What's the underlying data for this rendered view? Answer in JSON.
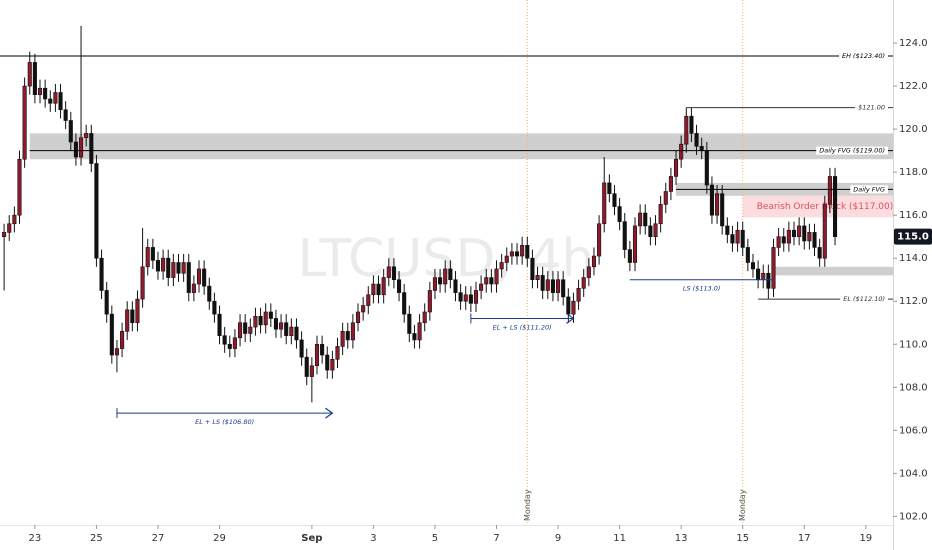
{
  "chart_data": {
    "type": "candlestick",
    "title": "LTCUSD, 4h",
    "xlim": [
      -0.8,
      173.3
    ],
    "ylim": [
      101.6,
      126.0
    ],
    "grid": false,
    "xticks": [
      {
        "value": 6,
        "label": "23"
      },
      {
        "value": 18,
        "label": "25"
      },
      {
        "value": 30,
        "label": "27"
      },
      {
        "value": 42,
        "label": "29"
      },
      {
        "value": 60,
        "label": "Sep"
      },
      {
        "value": 72,
        "label": "3"
      },
      {
        "value": 84,
        "label": "5"
      },
      {
        "value": 96,
        "label": "7"
      },
      {
        "value": 108,
        "label": "9"
      },
      {
        "value": 120,
        "label": "11"
      },
      {
        "value": 132,
        "label": "13"
      },
      {
        "value": 144,
        "label": "15"
      },
      {
        "value": 156,
        "label": "17"
      },
      {
        "value": 168,
        "label": "19"
      }
    ],
    "yticks": [
      {
        "value": 102,
        "label": "102.0"
      },
      {
        "value": 104,
        "label": "104.0"
      },
      {
        "value": 106,
        "label": "106.0"
      },
      {
        "value": 108,
        "label": "108.0"
      },
      {
        "value": 110,
        "label": "110.0"
      },
      {
        "value": 112,
        "label": "112.0"
      },
      {
        "value": 114,
        "label": "114.0"
      },
      {
        "value": 116,
        "label": "116.0"
      },
      {
        "value": 118,
        "label": "118.0"
      },
      {
        "value": 120,
        "label": "120.0"
      },
      {
        "value": 122,
        "label": "122.0"
      },
      {
        "value": 124,
        "label": "124.0"
      }
    ],
    "candles": {
      "up_color": "#8e1b2c",
      "down_color": "#111111",
      "open": [
        115.0,
        115.2,
        115.6,
        116.0,
        118.6,
        122.0,
        123.1,
        121.6,
        121.9,
        121.4,
        121.2,
        121.7,
        120.9,
        120.4,
        119.4,
        118.7,
        119.6,
        119.8,
        118.4,
        114.0,
        112.5,
        111.4,
        109.5,
        109.8,
        110.6,
        111.6,
        111.0,
        112.1,
        113.6,
        114.5,
        113.9,
        113.4,
        114.0,
        113.1,
        113.8,
        113.3,
        113.8,
        112.4,
        112.8,
        113.5,
        112.7,
        112.0,
        111.4,
        110.4,
        110.0,
        109.8,
        110.3,
        111.0,
        110.5,
        110.8,
        111.3,
        110.9,
        111.5,
        111.2,
        110.7,
        111.0,
        110.4,
        110.8,
        110.2,
        109.4,
        108.5,
        109.0,
        110.0,
        109.5,
        108.8,
        109.3,
        109.9,
        110.6,
        110.2,
        111.0,
        111.5,
        111.8,
        112.3,
        112.8,
        112.3,
        113.1,
        113.6,
        113.0,
        112.4,
        111.4,
        110.5,
        110.2,
        111.0,
        111.5,
        112.5,
        113.1,
        112.8,
        113.5,
        113.0,
        112.4,
        112.0,
        112.3,
        111.9,
        112.5,
        112.8,
        113.1,
        112.8,
        113.5,
        113.8,
        114.1,
        114.3,
        114.1,
        114.6,
        114.0,
        113.0,
        113.2,
        112.5,
        113.0,
        112.4,
        113.0,
        112.2,
        111.4,
        112.0,
        112.6,
        113.1,
        113.6,
        114.1,
        115.6,
        117.5,
        117.0,
        116.4,
        115.7,
        114.4,
        113.8,
        115.5,
        116.1,
        115.5,
        115.0,
        115.6,
        116.5,
        117.1,
        117.8,
        118.6,
        119.3,
        120.6,
        119.8,
        119.2,
        119.0,
        117.4,
        116.0,
        117.0,
        115.5,
        115.1,
        114.7,
        115.3,
        114.5,
        113.8,
        113.5,
        113.0,
        113.3,
        112.6,
        114.5,
        115.0,
        114.7,
        115.3,
        115.0,
        115.5,
        114.8,
        115.2,
        114.5,
        114.0,
        116.5,
        117.8
      ],
      "high": [
        115.6,
        116.0,
        116.4,
        119.0,
        122.4,
        123.6,
        123.5,
        122.3,
        122.3,
        121.8,
        122.1,
        122.1,
        121.3,
        120.8,
        119.8,
        124.8,
        120.2,
        120.2,
        118.8,
        114.4,
        112.9,
        111.8,
        110.2,
        111.0,
        112.0,
        112.0,
        112.5,
        115.4,
        114.9,
        114.9,
        114.3,
        114.4,
        114.4,
        114.2,
        114.2,
        114.2,
        114.2,
        113.2,
        113.9,
        113.9,
        113.1,
        112.4,
        111.8,
        110.8,
        110.4,
        110.7,
        111.4,
        111.4,
        111.2,
        111.7,
        111.7,
        111.9,
        111.9,
        111.6,
        111.4,
        111.4,
        111.2,
        111.2,
        110.6,
        109.8,
        109.4,
        110.4,
        110.4,
        109.9,
        109.7,
        110.3,
        111.0,
        111.0,
        111.4,
        111.9,
        112.2,
        112.7,
        113.2,
        113.2,
        113.5,
        114.0,
        114.0,
        113.4,
        112.8,
        111.8,
        110.9,
        111.4,
        111.9,
        112.9,
        113.5,
        113.5,
        113.9,
        113.9,
        113.4,
        112.8,
        112.7,
        112.7,
        112.9,
        113.2,
        113.5,
        113.5,
        113.9,
        114.2,
        114.5,
        114.7,
        114.7,
        115.0,
        115.0,
        114.4,
        113.6,
        113.6,
        113.4,
        113.4,
        113.4,
        113.4,
        112.6,
        112.4,
        113.0,
        113.5,
        114.0,
        114.5,
        116.0,
        118.7,
        117.9,
        117.4,
        116.8,
        116.1,
        114.8,
        115.9,
        116.5,
        116.5,
        115.9,
        116.0,
        116.9,
        117.5,
        118.2,
        119.0,
        119.7,
        121.0,
        121.0,
        120.2,
        119.6,
        119.4,
        117.8,
        117.4,
        117.4,
        115.9,
        115.5,
        115.7,
        115.7,
        114.9,
        114.2,
        113.9,
        113.7,
        113.7,
        114.9,
        115.4,
        115.4,
        115.7,
        115.7,
        115.9,
        115.9,
        115.6,
        115.6,
        114.9,
        116.9,
        118.2,
        118.2
      ],
      "low": [
        112.5,
        114.8,
        115.2,
        115.6,
        118.2,
        121.6,
        121.2,
        121.2,
        121.0,
        120.8,
        120.8,
        120.5,
        120.0,
        119.0,
        118.3,
        118.3,
        119.2,
        118.0,
        113.6,
        112.1,
        111.0,
        109.1,
        108.7,
        109.4,
        110.2,
        110.6,
        110.6,
        111.7,
        113.2,
        113.5,
        113.0,
        113.0,
        112.7,
        112.7,
        112.9,
        112.9,
        112.0,
        112.0,
        112.4,
        112.3,
        111.6,
        111.0,
        110.0,
        109.6,
        109.4,
        109.4,
        109.9,
        110.1,
        110.1,
        110.4,
        110.5,
        110.5,
        110.8,
        110.3,
        110.3,
        110.0,
        110.0,
        109.8,
        109.0,
        108.1,
        107.3,
        108.6,
        109.1,
        108.4,
        108.4,
        108.9,
        109.5,
        109.8,
        109.8,
        110.6,
        111.1,
        111.4,
        111.9,
        111.9,
        111.9,
        112.7,
        112.6,
        112.0,
        111.0,
        110.1,
        109.8,
        109.8,
        110.6,
        111.1,
        112.1,
        112.4,
        112.4,
        112.6,
        112.0,
        111.6,
        111.6,
        111.5,
        111.5,
        112.1,
        112.4,
        112.4,
        112.4,
        113.1,
        113.4,
        113.7,
        113.7,
        113.7,
        113.6,
        112.6,
        112.6,
        112.1,
        112.1,
        112.0,
        112.0,
        111.8,
        111.0,
        111.0,
        111.6,
        112.2,
        112.7,
        113.2,
        113.7,
        115.2,
        116.6,
        116.0,
        115.3,
        114.0,
        113.4,
        113.4,
        115.1,
        115.1,
        114.6,
        114.6,
        115.2,
        116.1,
        116.7,
        117.4,
        118.2,
        118.9,
        119.4,
        118.8,
        118.6,
        117.0,
        115.6,
        115.6,
        115.1,
        114.7,
        114.3,
        114.3,
        114.1,
        113.4,
        113.1,
        112.6,
        112.6,
        112.1,
        112.2,
        114.1,
        114.3,
        114.3,
        114.6,
        114.6,
        114.4,
        114.4,
        114.1,
        113.6,
        113.6,
        116.1,
        114.6
      ],
      "close": [
        115.2,
        115.6,
        116.0,
        118.6,
        122.0,
        123.1,
        121.6,
        121.9,
        121.4,
        121.2,
        121.7,
        120.9,
        120.4,
        119.4,
        118.7,
        119.6,
        119.8,
        118.4,
        114.0,
        112.5,
        111.4,
        109.5,
        109.8,
        110.6,
        111.6,
        111.0,
        112.1,
        113.6,
        114.5,
        113.9,
        113.4,
        114.0,
        113.1,
        113.8,
        113.3,
        113.8,
        112.4,
        112.8,
        113.5,
        112.7,
        112.0,
        111.4,
        110.4,
        110.0,
        109.8,
        110.3,
        111.0,
        110.5,
        110.8,
        111.3,
        110.9,
        111.5,
        111.2,
        110.7,
        111.0,
        110.4,
        110.8,
        110.2,
        109.4,
        108.5,
        109.0,
        110.0,
        109.5,
        108.8,
        109.3,
        109.9,
        110.6,
        110.2,
        111.0,
        111.5,
        111.8,
        112.3,
        112.8,
        112.3,
        113.1,
        113.6,
        113.0,
        112.4,
        111.4,
        110.5,
        110.2,
        111.0,
        111.5,
        112.5,
        113.1,
        112.8,
        113.5,
        113.0,
        112.4,
        112.0,
        112.3,
        111.9,
        112.5,
        112.8,
        113.1,
        112.8,
        113.5,
        113.8,
        114.1,
        114.3,
        114.1,
        114.6,
        114.0,
        113.0,
        113.2,
        112.5,
        113.0,
        112.4,
        113.0,
        112.2,
        111.4,
        112.0,
        112.6,
        113.1,
        113.6,
        114.1,
        115.6,
        117.5,
        117.0,
        116.4,
        115.7,
        114.4,
        113.8,
        115.5,
        116.1,
        115.5,
        115.0,
        115.6,
        116.5,
        117.1,
        117.8,
        118.6,
        119.3,
        120.6,
        119.8,
        119.2,
        119.0,
        117.4,
        116.0,
        117.0,
        115.5,
        115.1,
        114.7,
        115.3,
        114.5,
        113.8,
        113.5,
        113.0,
        113.3,
        112.6,
        114.5,
        115.0,
        114.7,
        115.3,
        115.0,
        115.5,
        114.8,
        115.2,
        114.5,
        114.0,
        116.5,
        117.8,
        115.0
      ]
    },
    "zones": [
      {
        "low": 118.6,
        "high": 119.8,
        "from": 5,
        "to": 173.3,
        "color": "#cfcfcf"
      },
      {
        "low": 116.9,
        "high": 117.5,
        "from": 131,
        "to": 173.3,
        "color": "#cfcfcf"
      },
      {
        "low": 115.9,
        "high": 116.9,
        "from": 144,
        "to": 173.3,
        "color": "#fbdde0",
        "label": "Bearish Order Block ($117.00)",
        "label_color": "#e0505f"
      },
      {
        "low": 113.2,
        "high": 113.6,
        "from": 150,
        "to": 173.3,
        "color": "#cfcfcf"
      }
    ],
    "levels": [
      {
        "label": "EH ($123.40)",
        "value": 123.4,
        "from": -0.8,
        "to": 173.3,
        "color": "#000000",
        "label_position": "right"
      },
      {
        "label": "$121.00",
        "value": 121.0,
        "from": 133,
        "to": 173.3,
        "color": "#333333",
        "label_position": "right"
      },
      {
        "label": "Daily FVG ($119.00)",
        "value": 119.0,
        "from": 5,
        "to": 173.3,
        "color": "#000000",
        "label_position": "right"
      },
      {
        "label": "Daily FVG",
        "value": 117.2,
        "from": 131,
        "to": 173.3,
        "color": "#000000",
        "label_position": "right"
      },
      {
        "label": "LS ($113.0)",
        "value": 113.0,
        "from": 122,
        "to": 150,
        "color": "#1b3a8a",
        "label_position": "center"
      },
      {
        "label": "EL ($112.10)",
        "value": 112.1,
        "from": 147,
        "to": 173.3,
        "color": "#333333",
        "label_position": "right"
      },
      {
        "label": "EL + LS ($111.20)",
        "value": 111.2,
        "from": 91,
        "to": 111,
        "color": "#1b3a8a",
        "label_position": "center",
        "arrow": true
      },
      {
        "label": "EL + LS ($106.80)",
        "value": 106.8,
        "from": 22,
        "to": 64,
        "color": "#1b3a8a",
        "label_position": "center",
        "arrow": true
      }
    ],
    "markers": [
      {
        "label": "Monday",
        "x": 102
      },
      {
        "label": "Monday",
        "x": 144
      }
    ],
    "last_price": {
      "value": 115.0,
      "label": "115.0"
    }
  }
}
